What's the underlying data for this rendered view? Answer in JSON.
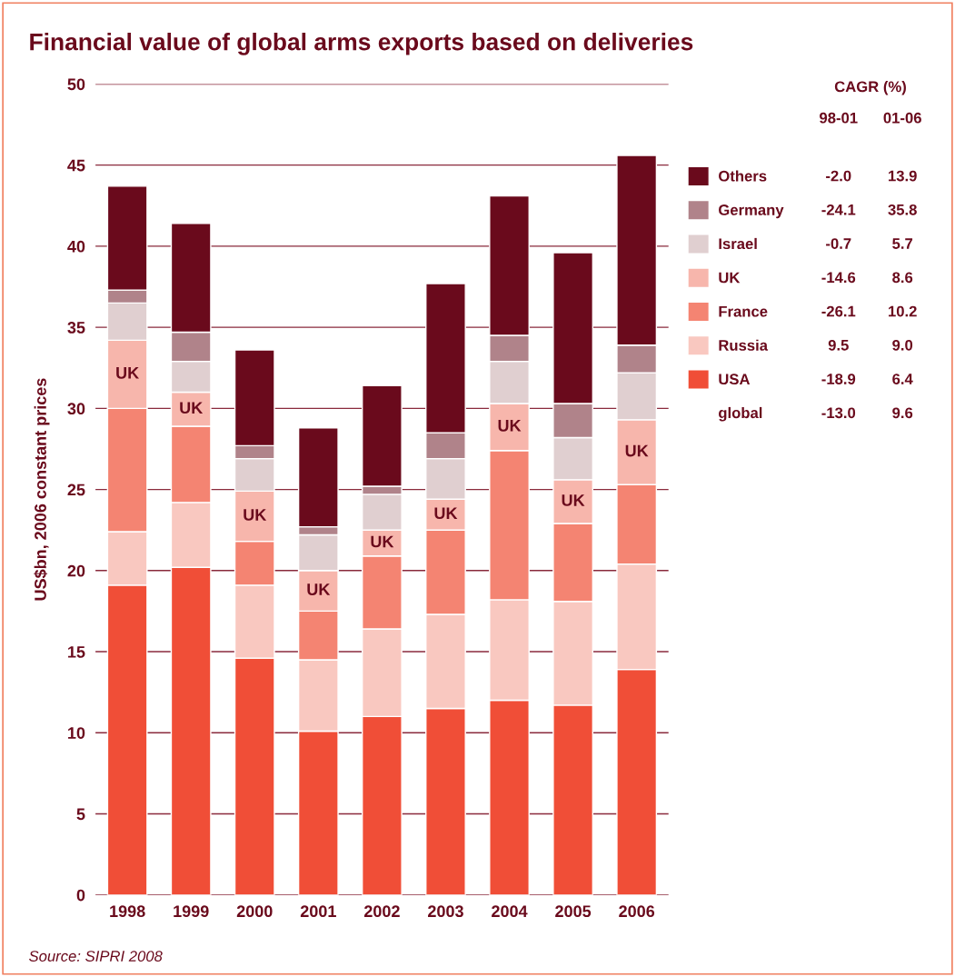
{
  "chart_data": {
    "type": "bar",
    "stacked": true,
    "title": "Financial value of global arms exports based on deliveries",
    "ylabel": "US$bn, 2006 constant prices",
    "categories": [
      "1998",
      "1999",
      "2000",
      "2001",
      "2002",
      "2003",
      "2004",
      "2005",
      "2006"
    ],
    "series": [
      {
        "name": "USA",
        "color": "#f04e37",
        "values": [
          19.1,
          20.2,
          14.6,
          10.1,
          11.0,
          11.5,
          12.0,
          11.7,
          13.9
        ]
      },
      {
        "name": "Russia",
        "color": "#f9c8c0",
        "values": [
          3.3,
          4.0,
          4.5,
          4.4,
          5.4,
          5.8,
          6.2,
          6.4,
          6.5
        ]
      },
      {
        "name": "France",
        "color": "#f48472",
        "values": [
          7.6,
          4.7,
          2.7,
          3.0,
          4.5,
          5.2,
          9.2,
          4.8,
          4.9
        ]
      },
      {
        "name": "UK",
        "color": "#f7b6ac",
        "values": [
          4.2,
          2.1,
          3.1,
          2.5,
          1.6,
          1.9,
          2.9,
          2.7,
          4.0
        ],
        "value_labels": [
          "UK",
          "UK",
          "UK",
          "UK",
          "UK",
          "UK",
          "UK",
          "UK",
          "UK"
        ]
      },
      {
        "name": "Israel",
        "color": "#e0cfd0",
        "values": [
          2.3,
          1.9,
          2.0,
          2.2,
          2.2,
          2.5,
          2.6,
          2.6,
          2.9
        ]
      },
      {
        "name": "Germany",
        "color": "#b0838a",
        "values": [
          0.8,
          1.8,
          0.8,
          0.5,
          0.5,
          1.6,
          1.6,
          2.1,
          1.7
        ]
      },
      {
        "name": "Others",
        "color": "#6a0a1c",
        "values": [
          6.4,
          6.7,
          5.9,
          6.1,
          6.2,
          9.2,
          8.6,
          9.3,
          11.7
        ]
      }
    ],
    "ylim": [
      0,
      50
    ],
    "yticks": [
      0,
      5,
      10,
      15,
      20,
      25,
      30,
      35,
      40,
      45,
      50
    ],
    "grid": "y",
    "legend": "right",
    "annotations": [
      "CAGR (%)",
      "98-01",
      "01-06",
      "-18.9",
      "6.4",
      "9.5",
      "9.0",
      "-26.1",
      "10.2",
      "-14.6",
      "8.6",
      "-0.7",
      "5.7",
      "-24.1",
      "35.8",
      "-2.0",
      "13.9",
      "global",
      "-13.0",
      "9.6",
      "Source: SIPRI 2008"
    ]
  }
}
